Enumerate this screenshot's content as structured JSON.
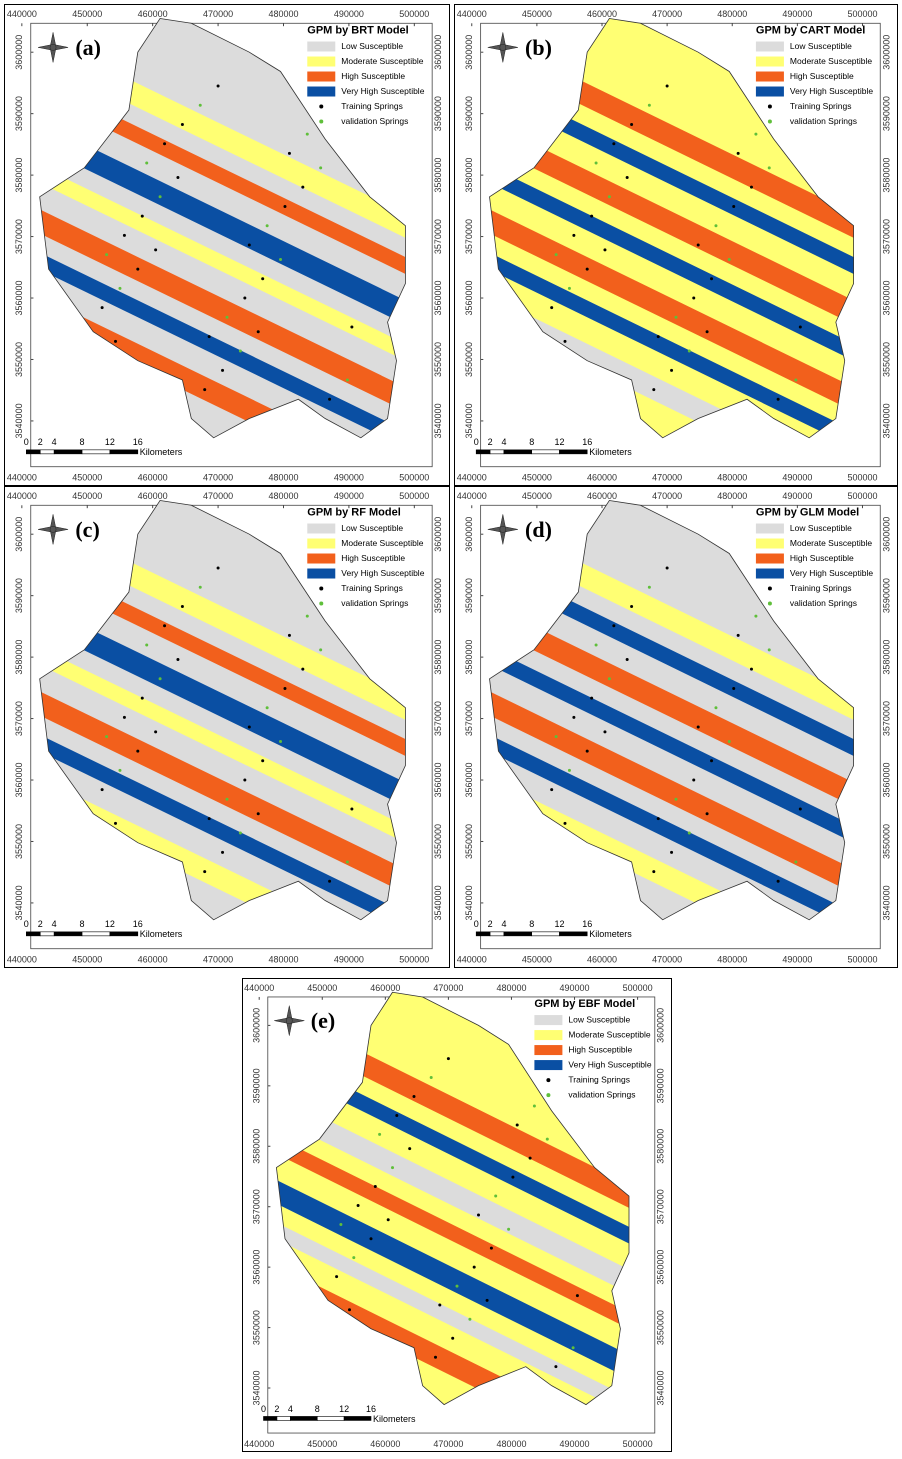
{
  "panels": [
    {
      "label": "(a)",
      "title": "GPM by BRT Model"
    },
    {
      "label": "(b)",
      "title": "GPM by CART Model"
    },
    {
      "label": "(c)",
      "title": "GPM by RF Model"
    },
    {
      "label": "(d)",
      "title": "GPM by GLM Model"
    },
    {
      "label": "(e)",
      "title": "GPM by EBF Model"
    }
  ],
  "legend": [
    {
      "text": "Low Susceptible",
      "color": "#dcdcdc"
    },
    {
      "text": "Moderate Susceptible",
      "color": "#ffff73"
    },
    {
      "text": "High Susceptible",
      "color": "#f2601c"
    },
    {
      "text": "Very High Susceptible",
      "color": "#0a4fa3"
    },
    {
      "text": "Training Springs",
      "color": "#000000"
    },
    {
      "text": "validation Springs",
      "color": "#5fbf3a"
    }
  ],
  "xticks": [
    440000,
    450000,
    460000,
    470000,
    480000,
    490000,
    500000
  ],
  "yticks": [
    3540000,
    3550000,
    3560000,
    3570000,
    3580000,
    3590000,
    3600000
  ],
  "scale_bar": {
    "labels": [
      0,
      2,
      4,
      8,
      12,
      16
    ],
    "unit": "Kilometers"
  }
}
